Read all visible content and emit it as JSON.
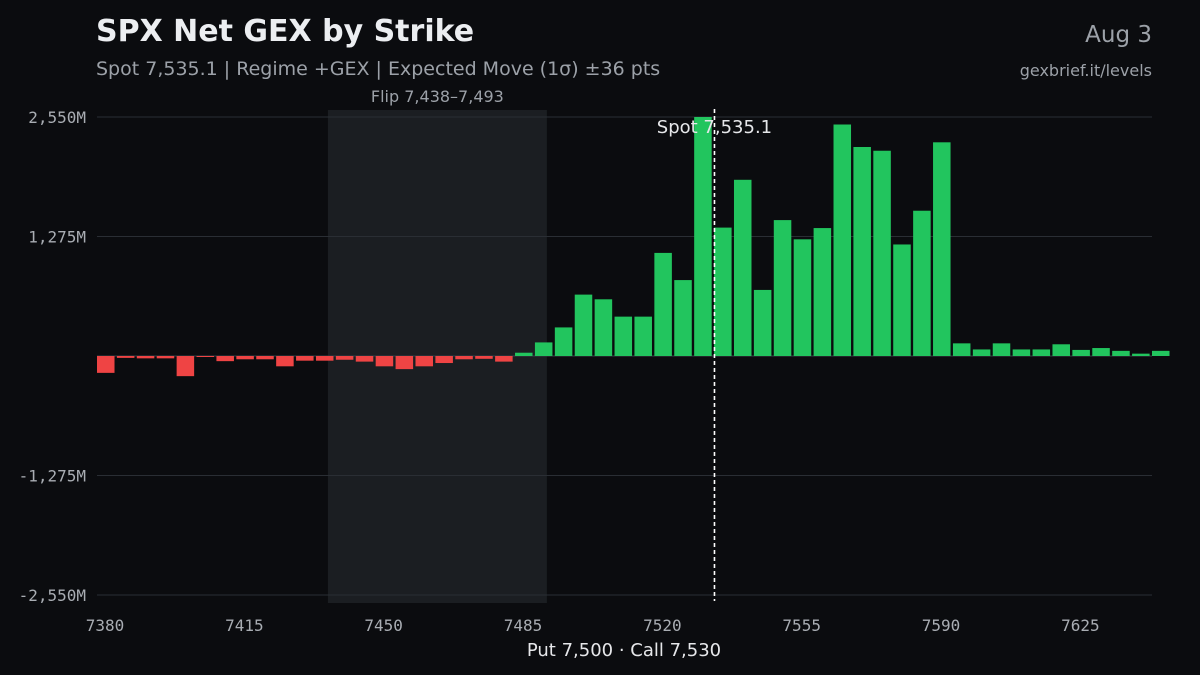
{
  "header": {
    "title": "SPX Net GEX by Strike",
    "subtitle": "Spot 7,535.1 | Regime +GEX | Expected Move (1σ) ±36 pts",
    "date": "Aug 3",
    "site": "gexbrief.it/levels"
  },
  "footer": {
    "text": "Put 7,500 · Call 7,530"
  },
  "chart_data": {
    "type": "bar",
    "xlabel": "",
    "ylabel": "",
    "xlim": [
      7380,
      7645
    ],
    "ylim": [
      -2550,
      2550
    ],
    "y_unit": "M",
    "yticks": [
      2550,
      1275,
      -1275,
      -2550
    ],
    "ytick_labels": [
      "2,550M",
      "1,275M",
      "-1,275M",
      "-2,550M"
    ],
    "xticks": [
      7380,
      7415,
      7450,
      7485,
      7520,
      7555,
      7590,
      7625
    ],
    "xtick_labels": [
      "7380",
      "7415",
      "7450",
      "7485",
      "7520",
      "7555",
      "7590",
      "7625"
    ],
    "grid": "horizontal",
    "colors": {
      "positive": "#22c55e",
      "negative": "#ef4444",
      "flip_zone": "#1b1e22",
      "spot_line": "#ffffff",
      "grid": "#2a2e34",
      "background": "#0b0c0f"
    },
    "bar_width": 4.4,
    "strikes": [
      7380,
      7385,
      7390,
      7395,
      7400,
      7405,
      7410,
      7415,
      7420,
      7425,
      7430,
      7435,
      7440,
      7445,
      7450,
      7455,
      7460,
      7465,
      7470,
      7475,
      7480,
      7485,
      7490,
      7495,
      7500,
      7505,
      7510,
      7515,
      7520,
      7525,
      7530,
      7535,
      7540,
      7545,
      7550,
      7555,
      7560,
      7565,
      7570,
      7575,
      7580,
      7585,
      7590,
      7595,
      7600,
      7605,
      7610,
      7615,
      7620,
      7625,
      7630,
      7635,
      7640,
      7645
    ],
    "values": [
      -180,
      -20,
      -25,
      -25,
      -215,
      -10,
      -55,
      -35,
      -35,
      -110,
      -50,
      -50,
      -40,
      -60,
      -110,
      -140,
      -110,
      -75,
      -35,
      -30,
      -60,
      35,
      145,
      305,
      655,
      605,
      420,
      420,
      1100,
      810,
      2550,
      1370,
      1880,
      705,
      1450,
      1245,
      1365,
      2470,
      2230,
      2190,
      1190,
      1550,
      2280,
      135,
      70,
      135,
      70,
      70,
      125,
      65,
      85,
      55,
      25,
      55
    ],
    "flip_zone": {
      "from": 7438,
      "to": 7493,
      "label": "Flip 7,438–7,493"
    },
    "spot": {
      "value": 7535.1,
      "label": "Spot 7,535.1"
    }
  }
}
